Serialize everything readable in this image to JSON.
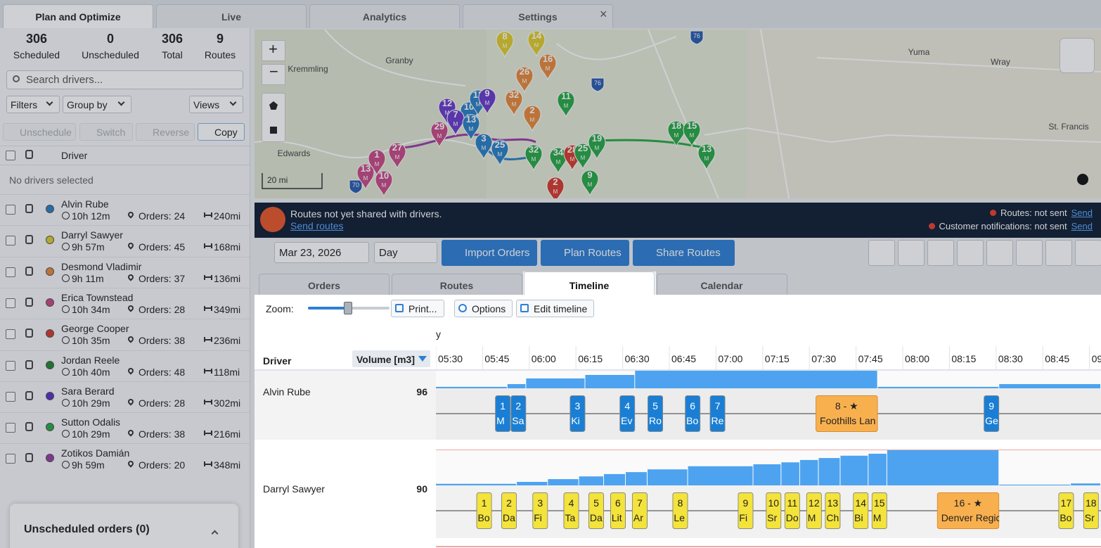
{
  "tabs": [
    {
      "label": "Plan and Optimize",
      "active": true
    },
    {
      "label": "Live"
    },
    {
      "label": "Analytics"
    },
    {
      "label": "Settings"
    }
  ],
  "stats": [
    {
      "value": 306,
      "label": "Scheduled"
    },
    {
      "value": 0,
      "label": "Unscheduled"
    },
    {
      "value": 306,
      "label": "Total"
    },
    {
      "value": 9,
      "label": "Routes"
    }
  ],
  "search_placeholder": "Search drivers...",
  "filters": [
    "Filters",
    "Group by",
    "Views"
  ],
  "actions": [
    "Unschedule",
    "Switch",
    "Reverse",
    "Copy"
  ],
  "driver_header": "Driver",
  "selection_note": "No drivers selected",
  "drivers": [
    {
      "name": "Alvin Rube",
      "color": "#2a7fc4",
      "time": "10h 12m",
      "orders": "Orders: 24",
      "distance": "240mi"
    },
    {
      "name": "Darryl Sawyer",
      "color": "#e0cc2a",
      "time": "9h 57m",
      "orders": "Orders: 45",
      "distance": "168mi"
    },
    {
      "name": "Desmond Vladimir",
      "color": "#e8883a",
      "time": "9h 11m",
      "orders": "Orders: 37",
      "distance": "136mi"
    },
    {
      "name": "Erica Townstead",
      "color": "#c84a86",
      "time": "10h 34m",
      "orders": "Orders: 28",
      "distance": "349mi"
    },
    {
      "name": "George Cooper",
      "color": "#d83a2c",
      "time": "10h 35m",
      "orders": "Orders: 38",
      "distance": "236mi"
    },
    {
      "name": "Jordan Reele",
      "color": "#1f8a2e",
      "time": "10h 40m",
      "orders": "Orders: 48",
      "distance": "118mi"
    },
    {
      "name": "Sara Berard",
      "color": "#5b2fc9",
      "time": "10h 29m",
      "orders": "Orders: 28",
      "distance": "302mi"
    },
    {
      "name": "Sutton Odalis",
      "color": "#27a844",
      "time": "10h 29m",
      "orders": "Orders: 38",
      "distance": "216mi"
    },
    {
      "name": "Zotikos Damián",
      "color": "#9a3aa8",
      "time": "9h 59m",
      "orders": "Orders: 20",
      "distance": "348mi"
    }
  ],
  "unscheduled": "Unscheduled orders (0)",
  "map": {
    "places": [
      "Kremmling",
      "Granby",
      "Edwards",
      "Yuma",
      "Wray",
      "St. Francis"
    ],
    "scale": "20 mi",
    "roads": [
      "76",
      "76",
      "70"
    ],
    "markers": {
      "sub_label": "M",
      "items": [
        {
          "label": "12",
          "color": "#6a3acb"
        },
        {
          "label": "10",
          "color": "#2a7fc4"
        },
        {
          "label": "7",
          "color": "#6a3acb"
        },
        {
          "label": "13",
          "color": "#2a7fc4"
        },
        {
          "label": "29",
          "color": "#c84a86"
        },
        {
          "label": "13",
          "color": "#2a7fc4"
        },
        {
          "label": "9",
          "color": "#6a3acb"
        },
        {
          "label": "3",
          "color": "#2a7fc4"
        },
        {
          "label": "25",
          "color": "#2a7fc4"
        },
        {
          "label": "8",
          "color": "#e0cc2a"
        },
        {
          "label": "14",
          "color": "#e0cc2a"
        },
        {
          "label": "16",
          "color": "#e8883a"
        },
        {
          "label": "26",
          "color": "#e8883a"
        },
        {
          "label": "32",
          "color": "#e8883a"
        },
        {
          "label": "2",
          "color": "#e8883a"
        },
        {
          "label": "11",
          "color": "#27a844"
        },
        {
          "label": "32",
          "color": "#27a844"
        },
        {
          "label": "34",
          "color": "#27a844"
        },
        {
          "label": "28",
          "color": "#d83a2c"
        },
        {
          "label": "25",
          "color": "#27a844"
        },
        {
          "label": "19",
          "color": "#27a844"
        },
        {
          "label": "9",
          "color": "#27a844"
        },
        {
          "label": "2",
          "color": "#d83a2c"
        },
        {
          "label": "27",
          "color": "#c84a86"
        },
        {
          "label": "1",
          "color": "#c84a86"
        },
        {
          "label": "13",
          "color": "#c84a86"
        },
        {
          "label": "10",
          "color": "#c84a86"
        },
        {
          "label": "18",
          "color": "#27a844"
        },
        {
          "label": "15",
          "color": "#27a844"
        },
        {
          "label": "13",
          "color": "#27a844"
        }
      ]
    }
  },
  "banner": {
    "message": "Routes not yet shared with drivers.",
    "link": "Send routes",
    "routes_status": "Routes: not sent",
    "customer_status": "Customer notifications: not sent",
    "send": "Send"
  },
  "toolbar": {
    "date": "Mar 23, 2026",
    "period": "Day",
    "buttons": [
      "Import Orders",
      "Plan Routes",
      "Share Routes"
    ]
  },
  "view_tabs": [
    {
      "label": "Orders"
    },
    {
      "label": "Routes"
    },
    {
      "label": "Timeline",
      "active": true
    },
    {
      "label": "Calendar"
    }
  ],
  "timeline": {
    "zoom_label": "Zoom:",
    "buttons": [
      "Print...",
      "Options",
      "Edit timeline"
    ],
    "period_fragment": "y",
    "times": [
      "05:30",
      "05:45",
      "06:00",
      "06:15",
      "06:30",
      "06:45",
      "07:00",
      "07:15",
      "07:30",
      "07:45",
      "08:00",
      "08:15",
      "08:30",
      "08:45",
      "09"
    ],
    "driver_header": "Driver",
    "volume_header": "Volume [m3]",
    "rows": [
      {
        "driver": "Alvin Rube",
        "volume": 96,
        "color": "#1a7fd4",
        "text_color": "#ffffff",
        "load_steps": [
          {
            "start": "05:30",
            "value": 8
          },
          {
            "start": "05:53",
            "value": 23
          },
          {
            "start": "05:59",
            "value": 54
          },
          {
            "start": "06:18",
            "value": 73
          },
          {
            "start": "06:34",
            "value": 96
          },
          {
            "start": "07:52",
            "value": 8
          },
          {
            "start": "08:31",
            "value": 23
          }
        ],
        "stops": [
          {
            "number": "1",
            "name": "M",
            "start": "05:49",
            "end": "05:54"
          },
          {
            "number": "2",
            "name": "Sa",
            "start": "05:54",
            "end": "05:59"
          },
          {
            "number": "3",
            "name": "Ki",
            "start": "06:13",
            "end": "06:18"
          },
          {
            "number": "4",
            "name": "Ev",
            "start": "06:29",
            "end": "06:34"
          },
          {
            "number": "5",
            "name": "Ro",
            "start": "06:38",
            "end": "06:43"
          },
          {
            "number": "6",
            "name": "Bo",
            "start": "06:50",
            "end": "06:55"
          },
          {
            "number": "7",
            "name": "Re",
            "start": "06:58",
            "end": "07:03"
          },
          {
            "number": "8 - ★",
            "name": "Foothills Lan",
            "start": "07:32",
            "end": "07:52",
            "depot": true
          },
          {
            "number": "9",
            "name": "Ge",
            "start": "08:26",
            "end": "08:31"
          }
        ]
      },
      {
        "driver": "Darryl Sawyer",
        "volume": 90,
        "color": "#f3e33a",
        "text_color": "#222222",
        "load_steps": [
          {
            "start": "05:30",
            "value": 4
          },
          {
            "start": "05:56",
            "value": 9
          },
          {
            "start": "06:06",
            "value": 16
          },
          {
            "start": "06:16",
            "value": 23
          },
          {
            "start": "06:24",
            "value": 29
          },
          {
            "start": "06:31",
            "value": 34
          },
          {
            "start": "06:38",
            "value": 41
          },
          {
            "start": "06:51",
            "value": 49
          },
          {
            "start": "07:12",
            "value": 54
          },
          {
            "start": "07:21",
            "value": 59
          },
          {
            "start": "07:27",
            "value": 65
          },
          {
            "start": "07:33",
            "value": 70
          },
          {
            "start": "07:40",
            "value": 76
          },
          {
            "start": "07:49",
            "value": 81
          },
          {
            "start": "07:55",
            "value": 90
          },
          {
            "start": "08:31",
            "value": 2
          },
          {
            "start": "08:54",
            "value": 5
          }
        ],
        "stops": [
          {
            "number": "1",
            "name": "Bo",
            "start": "05:43",
            "end": "05:48"
          },
          {
            "number": "2",
            "name": "Da",
            "start": "05:51",
            "end": "05:56"
          },
          {
            "number": "3",
            "name": "Fi",
            "start": "06:01",
            "end": "06:06"
          },
          {
            "number": "4",
            "name": "Ta",
            "start": "06:11",
            "end": "06:16"
          },
          {
            "number": "5",
            "name": "Da",
            "start": "06:19",
            "end": "06:24"
          },
          {
            "number": "6",
            "name": "Lit",
            "start": "06:26",
            "end": "06:31"
          },
          {
            "number": "7",
            "name": "Ar",
            "start": "06:33",
            "end": "06:38"
          },
          {
            "number": "8",
            "name": "Le",
            "start": "06:46",
            "end": "06:51"
          },
          {
            "number": "9",
            "name": "Fi",
            "start": "07:07",
            "end": "07:12"
          },
          {
            "number": "10",
            "name": "Sr",
            "start": "07:16",
            "end": "07:21"
          },
          {
            "number": "11",
            "name": "Do",
            "start": "07:22",
            "end": "07:27"
          },
          {
            "number": "12",
            "name": "M",
            "start": "07:29",
            "end": "07:34"
          },
          {
            "number": "13",
            "name": "Ch",
            "start": "07:35",
            "end": "07:40"
          },
          {
            "number": "14",
            "name": "Bi",
            "start": "07:44",
            "end": "07:49"
          },
          {
            "number": "15",
            "name": "M",
            "start": "07:50",
            "end": "07:55"
          },
          {
            "number": "16 - ★",
            "name": "Denver Regic",
            "start": "08:11",
            "end": "08:31",
            "depot": true
          },
          {
            "number": "17",
            "name": "Bo",
            "start": "08:50",
            "end": "08:55"
          },
          {
            "number": "18",
            "name": "Sr",
            "start": "08:58",
            "end": "09:03"
          }
        ]
      }
    ]
  }
}
